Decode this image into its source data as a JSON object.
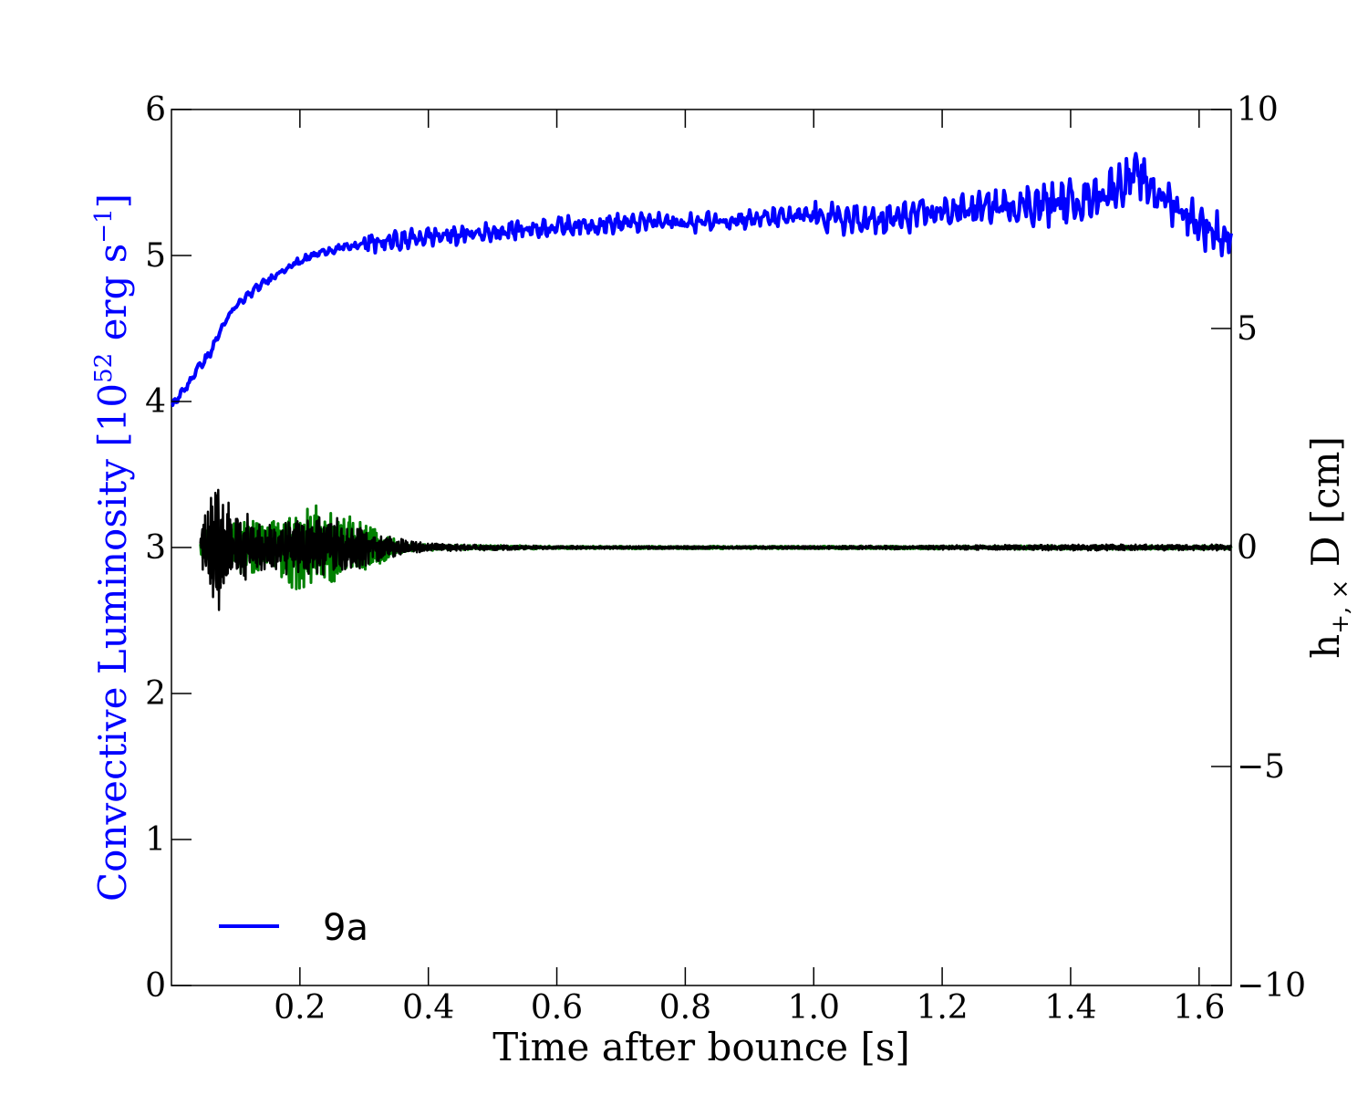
{
  "chart_data": {
    "type": "line",
    "xlabel": "Time after bounce [s]",
    "ylabel_left": {
      "prefix": "Convective Luminosity [10",
      "exp": "52",
      "mid": " erg s",
      "exp2": "−1",
      "suffix": "]"
    },
    "ylabel_right": {
      "base": "h",
      "sub": "+, ×",
      "suffix": " D [cm]"
    },
    "xlim": [
      0.0,
      1.65
    ],
    "ylim_left": [
      0,
      6
    ],
    "ylim_right": [
      -10,
      10
    ],
    "x_ticks": [
      "0.2",
      "0.4",
      "0.6",
      "0.8",
      "1.0",
      "1.2",
      "1.4",
      "1.6"
    ],
    "x_tick_values": [
      0.2,
      0.4,
      0.6,
      0.8,
      1.0,
      1.2,
      1.4,
      1.6
    ],
    "y_left_ticks": [
      "0",
      "1",
      "2",
      "3",
      "4",
      "5",
      "6"
    ],
    "y_left_tick_values": [
      0,
      1,
      2,
      3,
      4,
      5,
      6
    ],
    "y_right_ticks": [
      "−10",
      "−5",
      "0",
      "5",
      "10"
    ],
    "y_right_tick_values": [
      -10,
      -5,
      0,
      5,
      10
    ],
    "legend": {
      "entries": [
        "9a"
      ],
      "position": "lower-left"
    },
    "colors": {
      "luminosity": "#0000ff",
      "h_plus": "#000000",
      "h_cross": "#008000",
      "left_label": "#0000ff"
    },
    "series": [
      {
        "name": "9a",
        "axis": "left",
        "color": "#0000ff",
        "x": [
          0.0,
          0.02,
          0.04,
          0.06,
          0.08,
          0.1,
          0.12,
          0.14,
          0.16,
          0.18,
          0.2,
          0.22,
          0.24,
          0.26,
          0.28,
          0.3,
          0.35,
          0.4,
          0.45,
          0.5,
          0.55,
          0.6,
          0.65,
          0.7,
          0.75,
          0.8,
          0.85,
          0.9,
          0.95,
          1.0,
          1.05,
          1.1,
          1.15,
          1.2,
          1.25,
          1.3,
          1.35,
          1.4,
          1.45,
          1.5,
          1.55,
          1.6,
          1.65
        ],
        "values": [
          3.97,
          4.08,
          4.22,
          4.33,
          4.52,
          4.65,
          4.73,
          4.8,
          4.86,
          4.92,
          4.96,
          5.0,
          5.03,
          5.05,
          5.06,
          5.08,
          5.1,
          5.13,
          5.14,
          5.16,
          5.18,
          5.2,
          5.21,
          5.22,
          5.23,
          5.22,
          5.24,
          5.25,
          5.26,
          5.27,
          5.25,
          5.23,
          5.27,
          5.3,
          5.32,
          5.34,
          5.35,
          5.37,
          5.42,
          5.55,
          5.38,
          5.22,
          5.1
        ]
      },
      {
        "name": "",
        "axis": "right",
        "color": "#000000",
        "x": [
          0.04,
          0.07,
          0.1,
          0.15,
          0.2,
          0.25,
          0.3,
          0.35,
          0.4,
          0.6,
          1.0,
          1.4,
          1.65
        ],
        "amplitude": [
          0.3,
          1.5,
          0.8,
          0.5,
          0.6,
          0.7,
          0.4,
          0.2,
          0.08,
          0.03,
          0.03,
          0.06,
          0.06
        ]
      },
      {
        "name": "",
        "axis": "right",
        "color": "#008000",
        "x": [
          0.04,
          0.07,
          0.1,
          0.15,
          0.2,
          0.25,
          0.3,
          0.35,
          0.4,
          0.6,
          1.0,
          1.4,
          1.65
        ],
        "amplitude": [
          0.2,
          0.5,
          0.5,
          0.6,
          0.9,
          0.8,
          0.5,
          0.15,
          0.06,
          0.03,
          0.03,
          0.04,
          0.04
        ]
      }
    ]
  }
}
